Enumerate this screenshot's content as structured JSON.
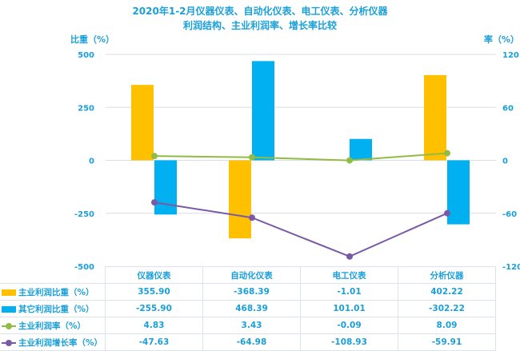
{
  "title_line1": "2020年1-2月仪器仪表、自动化仪表、电工仪表、分析仪器",
  "title_line2": "利润结构、主业利润率、增长率比较",
  "chart_data": {
    "type": "bar",
    "categories": [
      "仪器仪表",
      "自动化仪表",
      "电工仪表",
      "分析仪器"
    ],
    "left_axis": {
      "label": "比重（%）",
      "range": [
        -500,
        500
      ],
      "ticks": [
        500,
        250,
        0,
        -250,
        -500
      ]
    },
    "right_axis": {
      "label": "率（%）",
      "range": [
        -120,
        120
      ],
      "ticks": [
        120,
        60,
        0,
        -60,
        -120
      ]
    },
    "grid": true,
    "legend": "data-table",
    "series": [
      {
        "name": "主业利润比重（%）",
        "kind": "bar",
        "axis": "left",
        "color": "#ffc000",
        "values": [
          355.9,
          -368.39,
          -1.01,
          402.22
        ],
        "labels": [
          "355.90",
          "-368.39",
          "-1.01",
          "402.22"
        ]
      },
      {
        "name": "其它利润比重（%）",
        "kind": "bar",
        "axis": "left",
        "color": "#00b0f0",
        "values": [
          -255.9,
          468.39,
          101.01,
          -302.22
        ],
        "labels": [
          "-255.90",
          "468.39",
          "101.01",
          "-302.22"
        ]
      },
      {
        "name": "主业利润率（%）",
        "kind": "line",
        "axis": "right",
        "color": "#8fbc45",
        "values": [
          4.83,
          3.43,
          -0.09,
          8.09
        ],
        "labels": [
          "4.83",
          "3.43",
          "-0.09",
          "8.09"
        ]
      },
      {
        "name": "主业利润增长率（%）",
        "kind": "line",
        "axis": "right",
        "color": "#7a5aa6",
        "values": [
          -47.63,
          -64.98,
          -108.93,
          -59.91
        ],
        "labels": [
          "-47.63",
          "-64.98",
          "-108.93",
          "-59.91"
        ]
      }
    ]
  }
}
